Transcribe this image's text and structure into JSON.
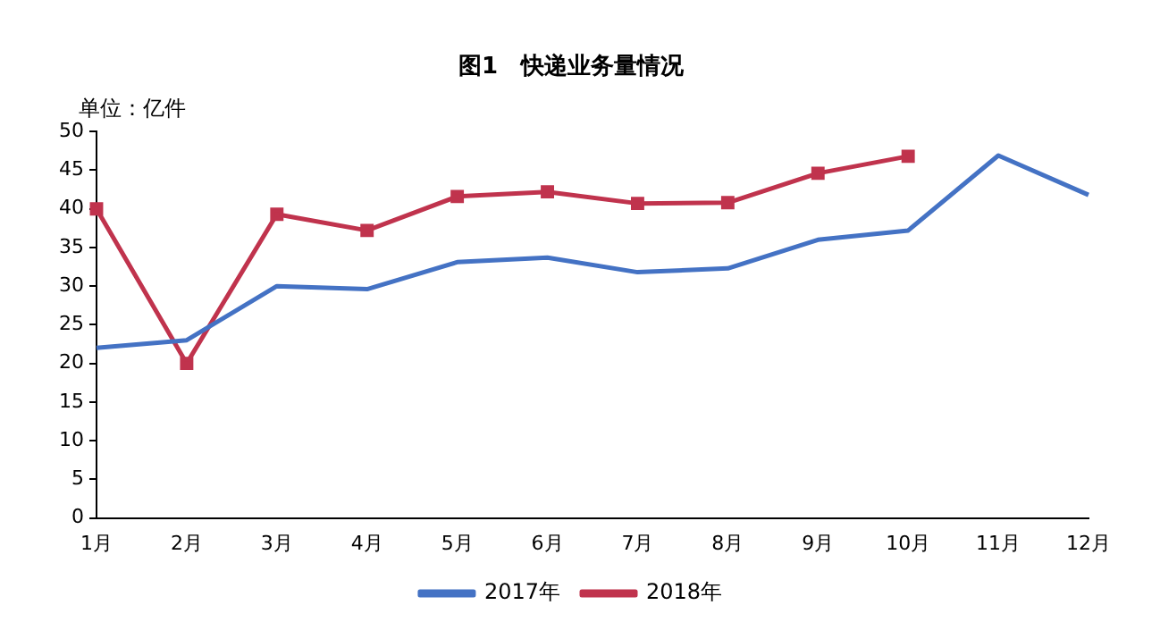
{
  "chart_data": {
    "type": "line",
    "title": "图1　快递业务量情况",
    "ylabel": "单位：亿件",
    "categories": [
      "1月",
      "2月",
      "3月",
      "4月",
      "5月",
      "6月",
      "7月",
      "8月",
      "9月",
      "10月",
      "11月",
      "12月"
    ],
    "series": [
      {
        "name": "2017年",
        "color": "#4472c4",
        "marker": "none",
        "values": [
          22,
          23,
          30,
          29.6,
          33.1,
          33.7,
          31.8,
          32.3,
          36,
          37.2,
          46.9,
          41.8
        ]
      },
      {
        "name": "2018年",
        "color": "#c0334d",
        "marker": "square",
        "values": [
          40,
          20,
          39.3,
          37.2,
          41.6,
          42.2,
          40.7,
          40.8,
          44.6,
          46.8,
          null,
          null
        ]
      }
    ],
    "ylim": [
      0,
      50
    ],
    "yticks": [
      0,
      5,
      10,
      15,
      20,
      25,
      30,
      35,
      40,
      45,
      50
    ],
    "grid": false,
    "legend": "bottom",
    "line_style": "solid"
  }
}
